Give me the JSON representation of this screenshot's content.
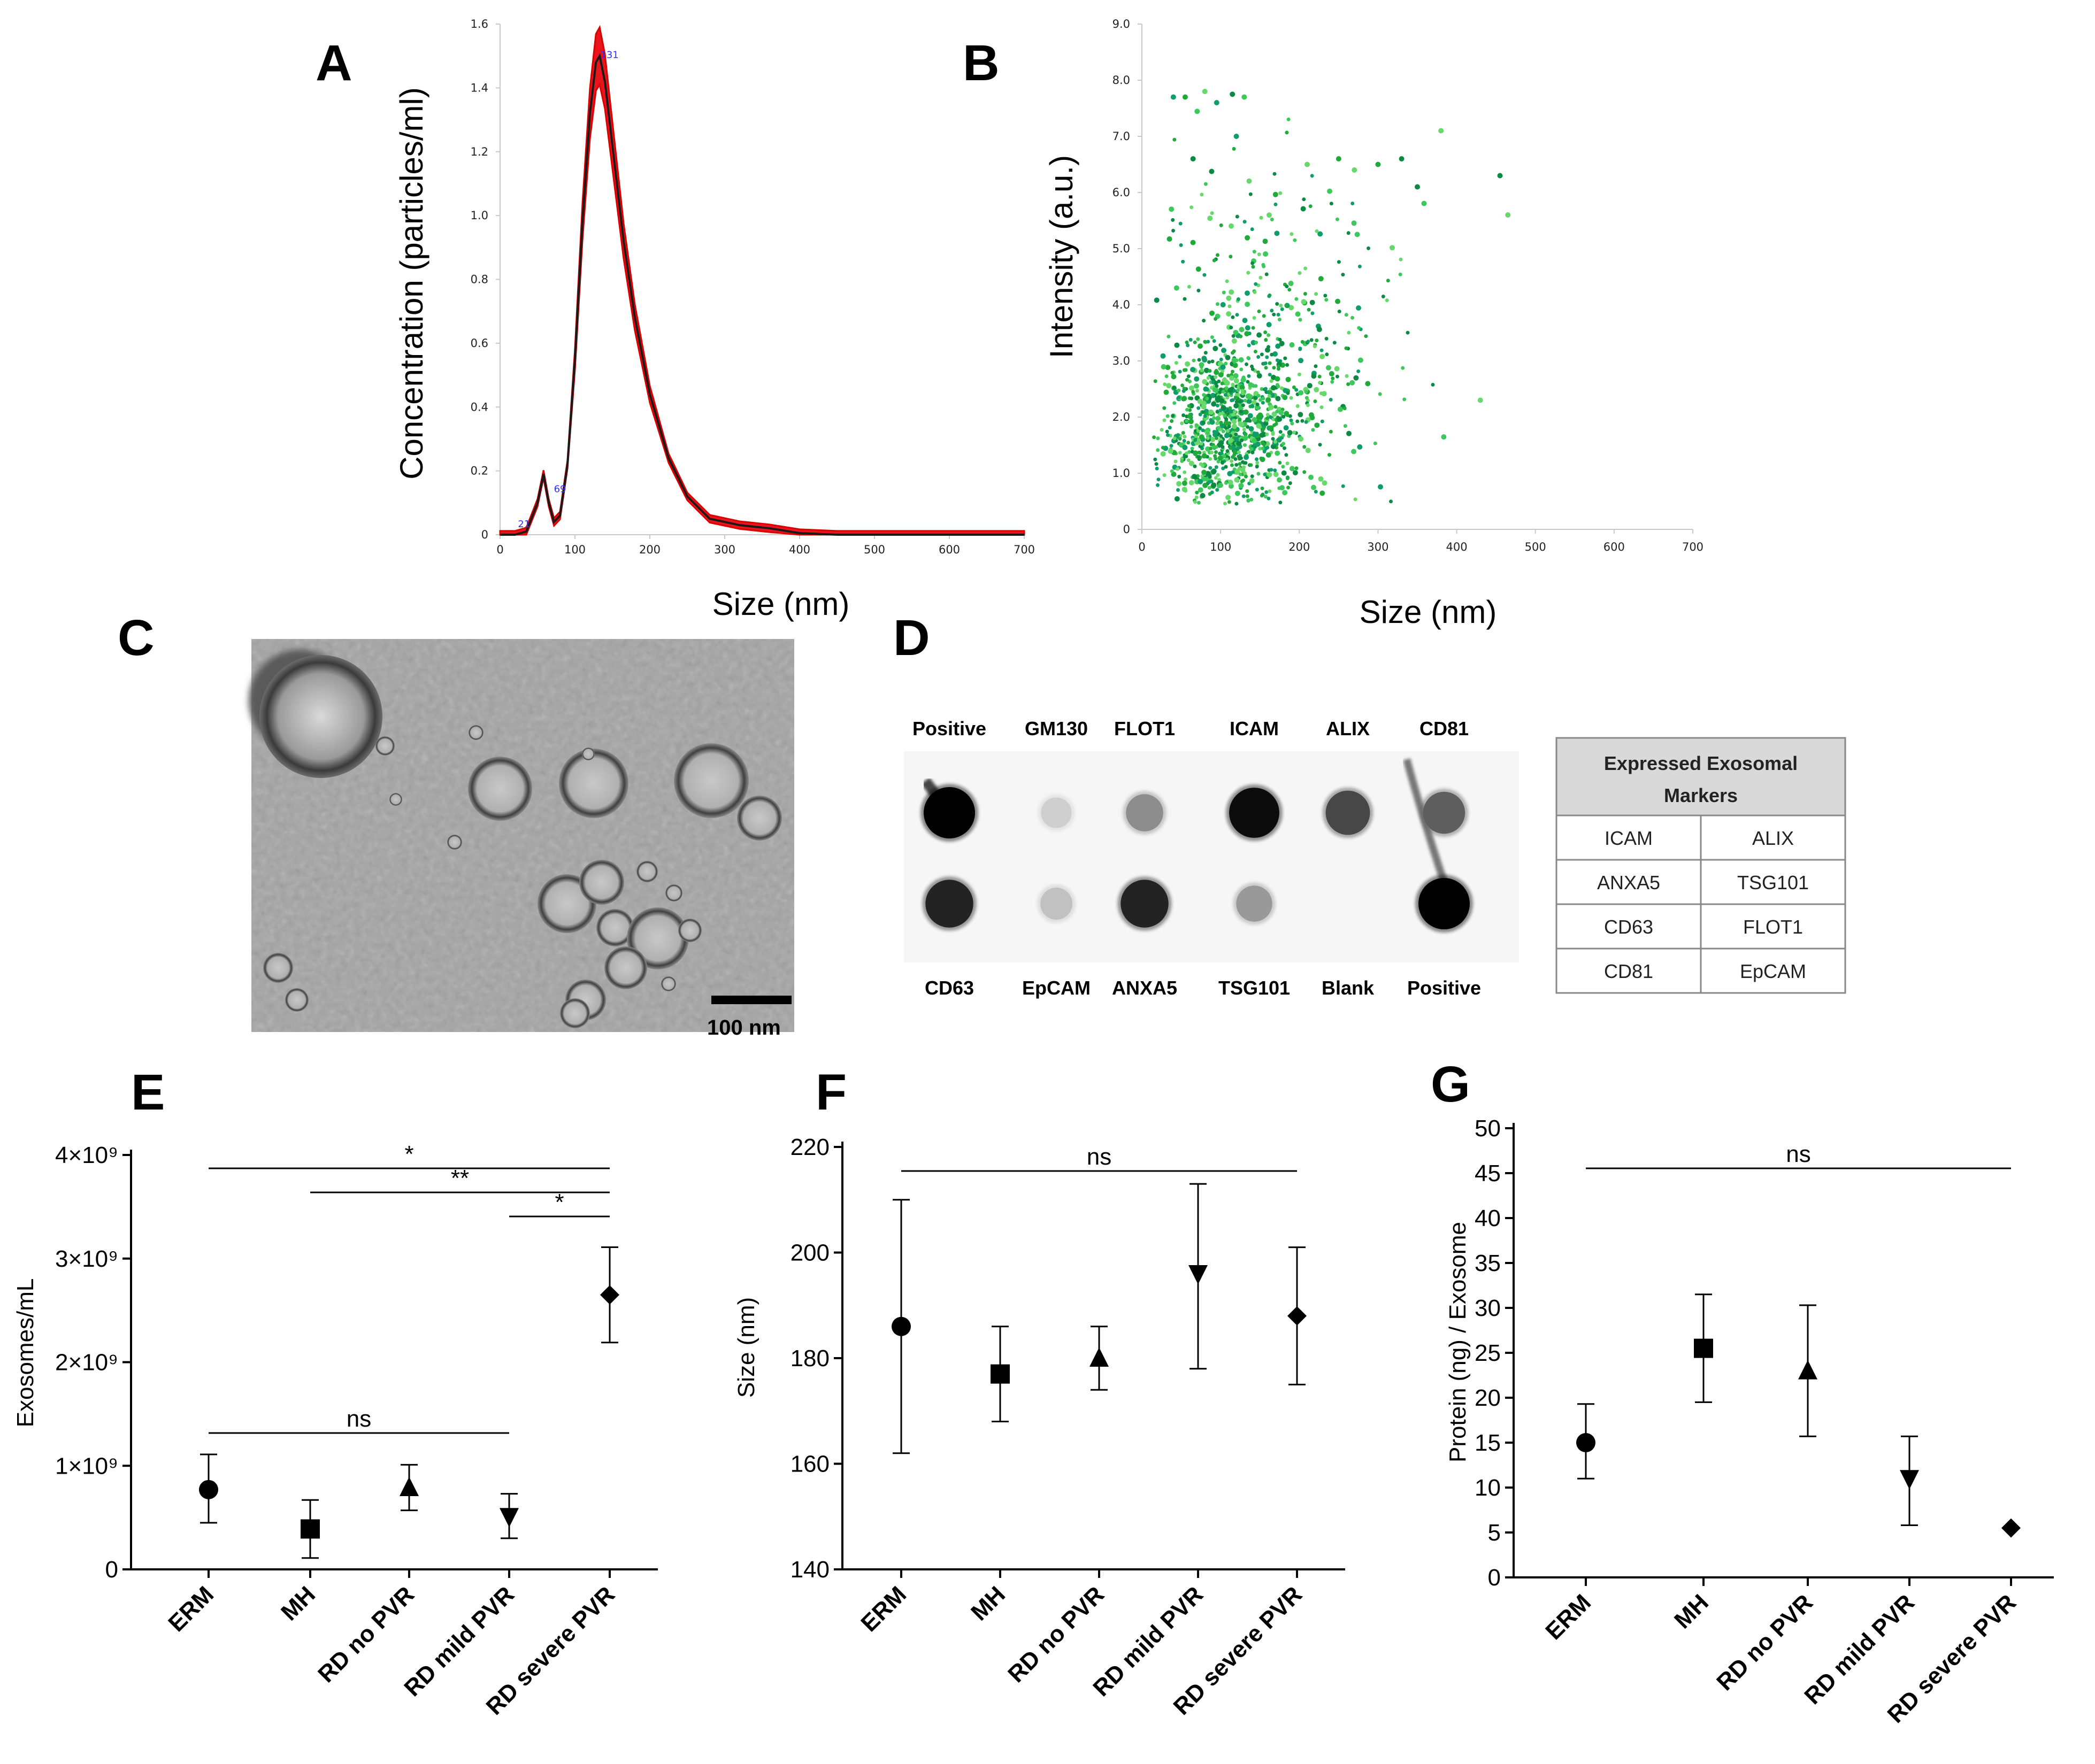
{
  "panels": {
    "A": "A",
    "B": "B",
    "C": "C",
    "D": "D",
    "E": "E",
    "F": "F",
    "G": "G"
  },
  "chart_data": [
    {
      "id": "A",
      "type": "line",
      "title": "",
      "xlabel": "Size (nm)",
      "ylabel": "Concentration (particles/ml)",
      "xlim": [
        0,
        700
      ],
      "ylim": [
        0,
        1.6
      ],
      "xticks": [
        "0",
        "100",
        "200",
        "300",
        "400",
        "500",
        "600",
        "700"
      ],
      "yticks": [
        "0",
        "0.2",
        "0.4",
        "0.6",
        "0.8",
        "1.0",
        "1.2",
        "1.4",
        "1.6"
      ],
      "x": [
        0,
        20,
        35,
        50,
        58,
        65,
        72,
        80,
        90,
        100,
        110,
        120,
        128,
        133,
        140,
        150,
        165,
        180,
        200,
        225,
        250,
        280,
        320,
        360,
        400,
        450,
        500,
        600,
        700
      ],
      "series": [
        {
          "name": "mean",
          "values": [
            0,
            0,
            0.01,
            0.1,
            0.19,
            0.1,
            0.04,
            0.06,
            0.22,
            0.55,
            0.98,
            1.32,
            1.48,
            1.5,
            1.42,
            1.22,
            0.92,
            0.68,
            0.44,
            0.24,
            0.12,
            0.05,
            0.03,
            0.02,
            0.005,
            0,
            0,
            0,
            0
          ]
        }
      ],
      "peak_labels": [
        {
          "x": 21,
          "y": 0.01,
          "text": "21"
        },
        {
          "x": 69,
          "y": 0.12,
          "text": "69"
        },
        {
          "x": 131,
          "y": 1.48,
          "text": "131"
        }
      ]
    },
    {
      "id": "B",
      "type": "scatter",
      "xlabel": "Size (nm)",
      "ylabel": "Intensity (a.u.)",
      "xlim": [
        0,
        700
      ],
      "ylim": [
        0,
        9
      ],
      "xticks": [
        "0",
        "100",
        "200",
        "300",
        "400",
        "500",
        "600",
        "700"
      ],
      "yticks": [
        "0",
        "1.0",
        "2.0",
        "3.0",
        "4.0",
        "5.0",
        "6.0",
        "7.0",
        "8.0",
        "9.0"
      ],
      "n_points": 1300,
      "point_colors": [
        "#1faa3a",
        "#0c8a44",
        "#3cc85a",
        "#0f9e6a",
        "#67d96b"
      ],
      "outliers": [
        [
          40,
          7.7
        ],
        [
          55,
          7.7
        ],
        [
          80,
          7.8
        ],
        [
          95,
          7.6
        ],
        [
          115,
          7.75
        ],
        [
          130,
          7.7
        ],
        [
          65,
          6.6
        ],
        [
          120,
          7.0
        ],
        [
          330,
          6.6
        ],
        [
          380,
          7.1
        ],
        [
          455,
          6.3
        ],
        [
          465,
          5.6
        ],
        [
          430,
          2.3
        ],
        [
          350,
          6.1
        ],
        [
          300,
          6.5
        ],
        [
          250,
          6.6
        ],
        [
          210,
          6.5
        ],
        [
          270,
          6.4
        ]
      ]
    },
    {
      "id": "E",
      "type": "scatter",
      "ylabel": "Exosomes/mL",
      "ylim": [
        0,
        4000000000
      ],
      "yticks": [
        "0",
        "1×10⁹",
        "2×10⁹",
        "3×10⁹",
        "4×10⁹"
      ],
      "categories": [
        "ERM",
        "MH",
        "RD no PVR",
        "RD mild PVR",
        "RD severe PVR"
      ],
      "markers": [
        "circle",
        "square",
        "triangle",
        "triangle-down",
        "diamond"
      ],
      "values": [
        770000000,
        390000000,
        790000000,
        510000000,
        2650000000
      ],
      "err_low": [
        450000000,
        110000000,
        570000000,
        300000000,
        2190000000
      ],
      "err_high": [
        1110000000,
        670000000,
        1010000000,
        730000000,
        3110000000
      ],
      "significance": [
        {
          "from": "ERM",
          "to": "RD severe PVR",
          "label": "*"
        },
        {
          "from": "MH",
          "to": "RD severe PVR",
          "label": "**"
        },
        {
          "from": "RD mild PVR",
          "to": "RD severe PVR",
          "label": "*"
        },
        {
          "from": "ERM",
          "to": "RD mild PVR",
          "label": "ns"
        }
      ]
    },
    {
      "id": "F",
      "type": "scatter",
      "ylabel": "Size (nm)",
      "ylim": [
        140,
        220
      ],
      "yticks": [
        "140",
        "160",
        "180",
        "200",
        "220"
      ],
      "categories": [
        "ERM",
        "MH",
        "RD no PVR",
        "RD mild PVR",
        "RD severe PVR"
      ],
      "markers": [
        "circle",
        "square",
        "triangle",
        "triangle-down",
        "diamond"
      ],
      "values": [
        186,
        177,
        180,
        196,
        188
      ],
      "err_low": [
        162,
        168,
        174,
        178,
        175
      ],
      "err_high": [
        210,
        186,
        186,
        213,
        201
      ],
      "significance": [
        {
          "from": "ERM",
          "to": "RD severe PVR",
          "label": "ns"
        }
      ]
    },
    {
      "id": "G",
      "type": "scatter",
      "ylabel": "Protein (ng) / Exosome",
      "ylim": [
        0,
        50
      ],
      "yticks": [
        "0",
        "5",
        "10",
        "15",
        "20",
        "25",
        "30",
        "35",
        "40",
        "45",
        "50"
      ],
      "categories": [
        "ERM",
        "MH",
        "RD no PVR",
        "RD mild PVR",
        "RD severe PVR"
      ],
      "markers": [
        "circle",
        "square",
        "triangle",
        "triangle-down",
        "diamond"
      ],
      "values": [
        15,
        25.5,
        23,
        11,
        5.5
      ],
      "err_low": [
        11,
        19.5,
        15.7,
        5.8,
        5.5
      ],
      "err_high": [
        19.3,
        31.5,
        30.3,
        15.7,
        5.5
      ],
      "significance": [
        {
          "from": "ERM",
          "to": "RD severe PVR",
          "label": "ns"
        }
      ]
    }
  ],
  "tem": {
    "scale_label": "100 nm"
  },
  "dot_blot": {
    "top_labels": [
      "Positive",
      "GM130",
      "FLOT1",
      "ICAM",
      "ALIX",
      "CD81"
    ],
    "bottom_labels": [
      "CD63",
      "EpCAM",
      "ANXA5",
      "TSG101",
      "Blank",
      "Positive"
    ],
    "top_intensity": [
      1.0,
      0.12,
      0.4,
      0.95,
      0.7,
      0.6
    ],
    "bottom_intensity": [
      0.85,
      0.18,
      0.85,
      0.35,
      0.0,
      1.0
    ],
    "table_title_line1": "Expressed Exosomal",
    "table_title_line2": "Markers",
    "table_rows": [
      [
        "ICAM",
        "ALIX"
      ],
      [
        "ANXA5",
        "TSG101"
      ],
      [
        "CD63",
        "FLOT1"
      ],
      [
        "CD81",
        "EpCAM"
      ]
    ]
  }
}
